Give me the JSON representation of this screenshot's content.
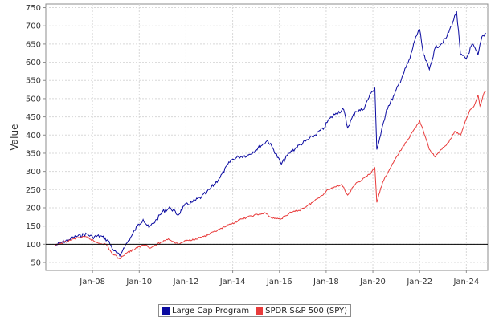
{
  "chart_data": {
    "type": "line",
    "title": "",
    "xlabel": "",
    "ylabel": "Value",
    "ylim": [
      28,
      760
    ],
    "xlim": [
      "2006-01",
      "2024-12"
    ],
    "y_ticks": [
      50,
      100,
      150,
      200,
      250,
      300,
      350,
      400,
      450,
      500,
      550,
      600,
      650,
      700,
      750
    ],
    "x_ticks": [
      {
        "date": "2008-01",
        "label": "Jan-08"
      },
      {
        "date": "2010-01",
        "label": "Jan-10"
      },
      {
        "date": "2012-01",
        "label": "Jan-12"
      },
      {
        "date": "2014-01",
        "label": "Jan-14"
      },
      {
        "date": "2016-01",
        "label": "Jan-16"
      },
      {
        "date": "2018-01",
        "label": "Jan-18"
      },
      {
        "date": "2020-01",
        "label": "Jan-20"
      },
      {
        "date": "2022-01",
        "label": "Jan-22"
      },
      {
        "date": "2024-01",
        "label": "Jan-24"
      }
    ],
    "grid": true,
    "reference_line": 100,
    "legend_position": "bottom",
    "series": [
      {
        "name": "Large Cap Program",
        "color": "#0a0aa0",
        "points": [
          [
            "2006-06",
            97
          ],
          [
            "2006-09",
            105
          ],
          [
            "2007-01",
            113
          ],
          [
            "2007-05",
            122
          ],
          [
            "2007-10",
            128
          ],
          [
            "2008-01",
            120
          ],
          [
            "2008-05",
            123
          ],
          [
            "2008-09",
            110
          ],
          [
            "2008-12",
            82
          ],
          [
            "2009-03",
            68
          ],
          [
            "2009-05",
            90
          ],
          [
            "2009-09",
            122
          ],
          [
            "2009-12",
            150
          ],
          [
            "2010-03",
            168
          ],
          [
            "2010-06",
            145
          ],
          [
            "2010-10",
            168
          ],
          [
            "2011-01",
            190
          ],
          [
            "2011-05",
            200
          ],
          [
            "2011-09",
            180
          ],
          [
            "2011-12",
            205
          ],
          [
            "2012-04",
            215
          ],
          [
            "2012-09",
            230
          ],
          [
            "2013-01",
            250
          ],
          [
            "2013-06",
            280
          ],
          [
            "2013-12",
            330
          ],
          [
            "2014-04",
            340
          ],
          [
            "2014-09",
            345
          ],
          [
            "2015-01",
            360
          ],
          [
            "2015-07",
            385
          ],
          [
            "2015-10",
            360
          ],
          [
            "2016-02",
            320
          ],
          [
            "2016-06",
            350
          ],
          [
            "2016-12",
            375
          ],
          [
            "2017-06",
            395
          ],
          [
            "2017-12",
            420
          ],
          [
            "2018-02",
            440
          ],
          [
            "2018-06",
            460
          ],
          [
            "2018-10",
            470
          ],
          [
            "2018-12",
            420
          ],
          [
            "2019-04",
            465
          ],
          [
            "2019-08",
            470
          ],
          [
            "2019-12",
            515
          ],
          [
            "2020-02",
            530
          ],
          [
            "2020-03",
            360
          ],
          [
            "2020-05",
            400
          ],
          [
            "2020-08",
            470
          ],
          [
            "2020-12",
            510
          ],
          [
            "2021-04",
            560
          ],
          [
            "2021-08",
            610
          ],
          [
            "2021-11",
            670
          ],
          [
            "2022-01",
            690
          ],
          [
            "2022-03",
            620
          ],
          [
            "2022-06",
            580
          ],
          [
            "2022-09",
            640
          ],
          [
            "2022-12",
            650
          ],
          [
            "2023-03",
            670
          ],
          [
            "2023-06",
            710
          ],
          [
            "2023-08",
            740
          ],
          [
            "2023-10",
            620
          ],
          [
            "2024-01",
            610
          ],
          [
            "2024-04",
            650
          ],
          [
            "2024-07",
            620
          ],
          [
            "2024-09",
            670
          ],
          [
            "2024-11",
            680
          ]
        ]
      },
      {
        "name": "SPDR S&P 500 (SPY)",
        "color": "#e83b3b",
        "points": [
          [
            "2006-06",
            97
          ],
          [
            "2006-12",
            108
          ],
          [
            "2007-05",
            118
          ],
          [
            "2007-10",
            120
          ],
          [
            "2008-03",
            105
          ],
          [
            "2008-08",
            100
          ],
          [
            "2008-11",
            75
          ],
          [
            "2009-03",
            60
          ],
          [
            "2009-06",
            75
          ],
          [
            "2009-12",
            90
          ],
          [
            "2010-04",
            100
          ],
          [
            "2010-07",
            90
          ],
          [
            "2010-12",
            105
          ],
          [
            "2011-04",
            115
          ],
          [
            "2011-09",
            100
          ],
          [
            "2011-12",
            108
          ],
          [
            "2012-06",
            115
          ],
          [
            "2012-12",
            125
          ],
          [
            "2013-06",
            140
          ],
          [
            "2013-12",
            155
          ],
          [
            "2014-06",
            170
          ],
          [
            "2014-12",
            180
          ],
          [
            "2015-06",
            185
          ],
          [
            "2015-09",
            172
          ],
          [
            "2016-02",
            170
          ],
          [
            "2016-06",
            185
          ],
          [
            "2016-12",
            195
          ],
          [
            "2017-06",
            215
          ],
          [
            "2017-12",
            240
          ],
          [
            "2018-02",
            250
          ],
          [
            "2018-09",
            265
          ],
          [
            "2018-12",
            235
          ],
          [
            "2019-04",
            265
          ],
          [
            "2019-12",
            295
          ],
          [
            "2020-02",
            310
          ],
          [
            "2020-03",
            215
          ],
          [
            "2020-06",
            270
          ],
          [
            "2020-12",
            330
          ],
          [
            "2021-06",
            380
          ],
          [
            "2021-12",
            430
          ],
          [
            "2022-01",
            440
          ],
          [
            "2022-03",
            410
          ],
          [
            "2022-06",
            360
          ],
          [
            "2022-09",
            340
          ],
          [
            "2022-12",
            360
          ],
          [
            "2023-04",
            380
          ],
          [
            "2023-07",
            410
          ],
          [
            "2023-10",
            400
          ],
          [
            "2023-12",
            430
          ],
          [
            "2024-03",
            470
          ],
          [
            "2024-05",
            480
          ],
          [
            "2024-07",
            510
          ],
          [
            "2024-08",
            480
          ],
          [
            "2024-10",
            515
          ],
          [
            "2024-11",
            520
          ]
        ]
      }
    ]
  }
}
